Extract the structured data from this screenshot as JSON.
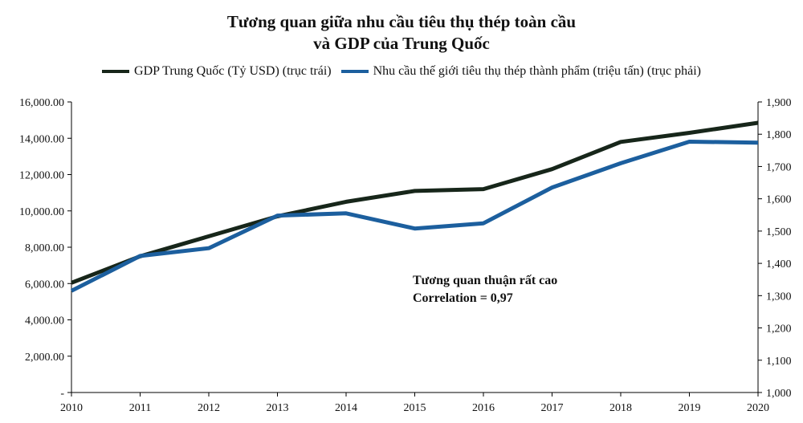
{
  "chart_data": {
    "type": "line",
    "title_line1": "Tương quan giữa nhu cầu tiêu thụ thép toàn cầu",
    "title_line2": "và GDP  của Trung Quốc",
    "x": [
      "2010",
      "2011",
      "2012",
      "2013",
      "2014",
      "2015",
      "2016",
      "2017",
      "2018",
      "2019",
      "2020"
    ],
    "series": [
      {
        "name": "GDP Trung Quốc (Tỷ USD) (trục trái)",
        "axis": "left",
        "color": "#17261a",
        "values": [
          6040,
          7500,
          8600,
          9700,
          10500,
          11100,
          11200,
          12300,
          13800,
          14300,
          14850
        ]
      },
      {
        "name": "Nhu cầu thế giới tiêu thụ thép thành phẩm (triệu tấn) (trục phải)",
        "axis": "right",
        "color": "#1c5f9e",
        "values": [
          1315,
          1423,
          1447,
          1548,
          1555,
          1508,
          1524,
          1635,
          1710,
          1777,
          1774
        ]
      }
    ],
    "y_left": {
      "min": 0,
      "max": 16000,
      "ticks": [
        0,
        2000,
        4000,
        6000,
        8000,
        10000,
        12000,
        14000,
        16000
      ],
      "tick_labels": [
        "-",
        "2,000.00",
        "4,000.00",
        "6,000.00",
        "8,000.00",
        "10,000.00",
        "12,000.00",
        "14,000.00",
        "16,000.00"
      ]
    },
    "y_right": {
      "min": 1000,
      "max": 1900,
      "ticks": [
        1000,
        1100,
        1200,
        1300,
        1400,
        1500,
        1600,
        1700,
        1800,
        1900
      ],
      "tick_labels": [
        "1,000",
        "1,100",
        "1,200",
        "1,300",
        "1,400",
        "1,500",
        "1,600",
        "1,700",
        "1,800",
        "1,900"
      ]
    },
    "annotation": [
      "Tương quan thuận rất cao",
      "Correlation = 0,97"
    ],
    "legend_position": "top-center",
    "grid": false
  }
}
